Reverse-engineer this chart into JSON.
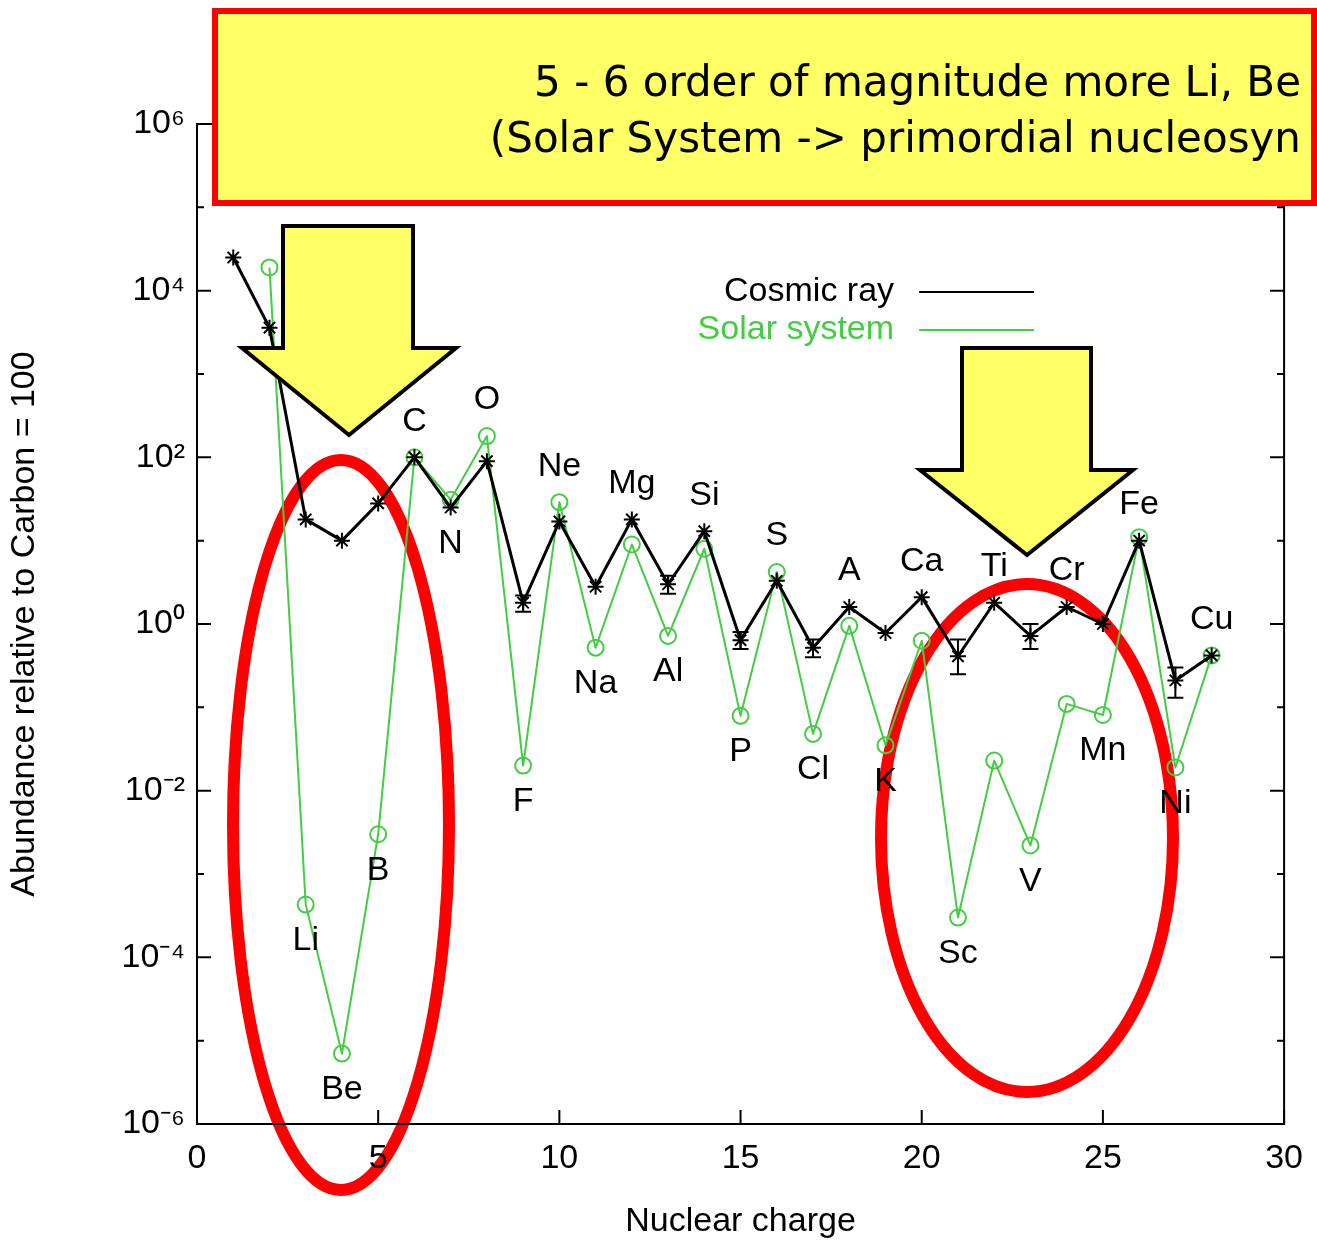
{
  "chart_data": {
    "type": "line",
    "xlabel": "Nuclear charge",
    "ylabel": "Abundance relative to Carbon = 100",
    "x": [
      1,
      2,
      3,
      4,
      5,
      6,
      7,
      8,
      9,
      10,
      11,
      12,
      13,
      14,
      15,
      16,
      17,
      18,
      19,
      20,
      21,
      22,
      23,
      24,
      25,
      26,
      27,
      28
    ],
    "xlim": [
      0,
      30
    ],
    "xticks": [
      0,
      5,
      10,
      15,
      20,
      25,
      30
    ],
    "log": true,
    "ylim": [
      1e-06,
      1000000.0
    ],
    "yticks": [
      {
        "value": 1e-06,
        "label": "10⁻⁶"
      },
      {
        "value": 1e-05,
        "label": null
      },
      {
        "value": 0.0001,
        "label": "10⁻⁴"
      },
      {
        "value": 0.001,
        "label": null
      },
      {
        "value": 0.01,
        "label": "10⁻²"
      },
      {
        "value": 0.1,
        "label": null
      },
      {
        "value": 1,
        "label": "10⁰"
      },
      {
        "value": 10,
        "label": null
      },
      {
        "value": 100,
        "label": "10²"
      },
      {
        "value": 1000,
        "label": null
      },
      {
        "value": 10000.0,
        "label": "10⁴"
      },
      {
        "value": 100000.0,
        "label": null
      },
      {
        "value": 1000000.0,
        "label": "10⁶"
      }
    ],
    "legend": "top right",
    "series": [
      {
        "name": "Cosmic ray",
        "color": "#000000",
        "marker": "cross",
        "values": [
          25000,
          3600,
          18,
          10,
          28,
          100,
          25,
          90,
          1.8,
          17,
          2.8,
          18,
          3,
          13,
          0.64,
          3.3,
          0.52,
          1.6,
          0.78,
          2.1,
          0.41,
          1.8,
          0.72,
          1.6,
          1.0,
          10,
          0.21,
          0.42
        ],
        "errors": [
          null,
          null,
          null,
          null,
          null,
          null,
          null,
          null,
          [
            1.4,
            2.2
          ],
          null,
          null,
          null,
          [
            2.3,
            3.8
          ],
          null,
          [
            0.5,
            0.8
          ],
          null,
          [
            0.4,
            0.65
          ],
          null,
          null,
          null,
          [
            0.25,
            0.65
          ],
          null,
          [
            0.5,
            1.0
          ],
          null,
          null,
          null,
          [
            0.13,
            0.3
          ],
          null
        ]
      },
      {
        "name": "Solar system",
        "color": "#44cc44",
        "marker": "circle",
        "values": [
          null,
          19000,
          0.00043,
          7e-06,
          0.003,
          100,
          31,
          180,
          0.02,
          29,
          0.52,
          9,
          0.72,
          8,
          0.079,
          4.2,
          0.048,
          0.95,
          0.035,
          0.63,
          0.0003,
          0.023,
          0.0022,
          0.11,
          0.081,
          11,
          0.019,
          0.42
        ]
      }
    ],
    "annotations": [
      "5 - 6 order of magnitude more Li, Be",
      "(Solar System -> primordial nucleosyn",
      {
        "text": "Li",
        "x": 3,
        "y": 0.00043
      },
      {
        "text": "Be",
        "x": 4,
        "y": 7e-06
      },
      {
        "text": "B",
        "x": 5,
        "y": 0.003
      },
      {
        "text": "C",
        "x": 6,
        "y": 100
      },
      {
        "text": "N",
        "x": 7,
        "y": 25
      },
      {
        "text": "O",
        "x": 8,
        "y": 180
      },
      {
        "text": "F",
        "x": 9,
        "y": 0.02
      },
      {
        "text": "Ne",
        "x": 10,
        "y": 29
      },
      {
        "text": "Na",
        "x": 11,
        "y": 0.52
      },
      {
        "text": "Mg",
        "x": 12,
        "y": 18
      },
      {
        "text": "Al",
        "x": 13,
        "y": 0.72
      },
      {
        "text": "Si",
        "x": 14,
        "y": 13
      },
      {
        "text": "P",
        "x": 15,
        "y": 0.079
      },
      {
        "text": "S",
        "x": 16,
        "y": 4.2
      },
      {
        "text": "Cl",
        "x": 17,
        "y": 0.048
      },
      {
        "text": "A",
        "x": 18,
        "y": 1.6
      },
      {
        "text": "K",
        "x": 19,
        "y": 0.035
      },
      {
        "text": "Ca",
        "x": 20,
        "y": 2.1
      },
      {
        "text": "Sc",
        "x": 21,
        "y": 0.0003
      },
      {
        "text": "Ti",
        "x": 22,
        "y": 1.8
      },
      {
        "text": "V",
        "x": 23,
        "y": 0.0022
      },
      {
        "text": "Cr",
        "x": 24,
        "y": 1.6
      },
      {
        "text": "Mn",
        "x": 25,
        "y": 0.081
      },
      {
        "text": "Fe",
        "x": 26,
        "y": 10
      },
      {
        "text": "Ni",
        "x": 27,
        "y": 0.019
      },
      {
        "text": "Cu",
        "x": 28,
        "y": 0.42
      }
    ]
  }
}
